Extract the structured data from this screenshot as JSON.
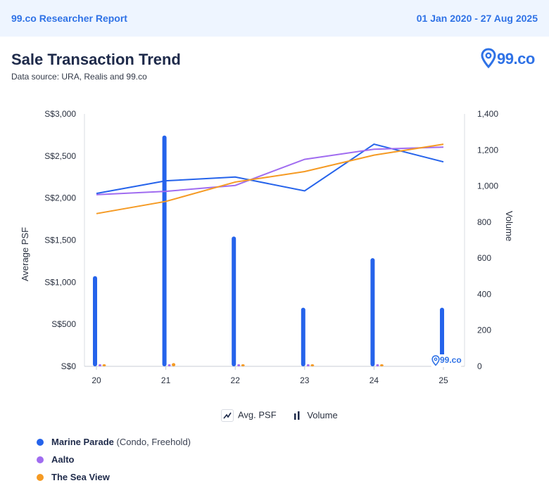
{
  "header": {
    "report_name": "99.co Researcher Report",
    "date_range": "01 Jan 2020 - 27 Aug 2025"
  },
  "title": "Sale Transaction Trend",
  "subtitle": "Data source: URA, Realis and 99.co",
  "logo": {
    "text": "99.co",
    "icon": "location-pin-icon"
  },
  "watermark": "99.co",
  "legend": {
    "line_label": "Avg. PSF",
    "bar_label": "Volume",
    "series": [
      {
        "name": "Marine Parade",
        "tag": "(Condo, Freehold)",
        "color": "#2563eb"
      },
      {
        "name": "Aalto",
        "tag": "",
        "color": "#a06cf0"
      },
      {
        "name": "The Sea View",
        "tag": "",
        "color": "#f59a23"
      }
    ]
  },
  "chart_data": {
    "type": "bar",
    "title": "Sale Transaction Trend",
    "categories": [
      "20",
      "21",
      "22",
      "23",
      "24",
      "25"
    ],
    "y_left": {
      "label": "Average PSF",
      "range": [
        0,
        3000
      ],
      "ticks": [
        "S$0",
        "S$500",
        "S$1,000",
        "S$1,500",
        "S$2,000",
        "S$2,500",
        "S$3,000"
      ]
    },
    "y_right": {
      "label": "Volume",
      "range": [
        0,
        1400
      ],
      "ticks": [
        "0",
        "200",
        "400",
        "600",
        "800",
        "1,000",
        "1,200",
        "1,400"
      ]
    },
    "lines": [
      {
        "name": "Marine Parade",
        "color": "#2563eb",
        "values": [
          2055,
          2205,
          2250,
          2085,
          2640,
          2430
        ]
      },
      {
        "name": "Aalto",
        "color": "#a06cf0",
        "values": [
          2040,
          2080,
          2150,
          2460,
          2580,
          2605
        ]
      },
      {
        "name": "The Sea View",
        "color": "#f59a23",
        "values": [
          1815,
          1960,
          2190,
          2315,
          2510,
          2640
        ]
      }
    ],
    "bars": [
      {
        "name": "Marine Parade",
        "color": "#2563eb",
        "values": [
          500,
          1280,
          720,
          325,
          600,
          325
        ]
      },
      {
        "name": "Aalto",
        "color": "#a06cf0",
        "values": [
          4,
          6,
          4,
          3,
          3,
          0
        ]
      },
      {
        "name": "The Sea View",
        "color": "#f59a23",
        "values": [
          6,
          18,
          2,
          4,
          4,
          0
        ]
      }
    ],
    "legend_position": "bottom",
    "grid": false
  }
}
